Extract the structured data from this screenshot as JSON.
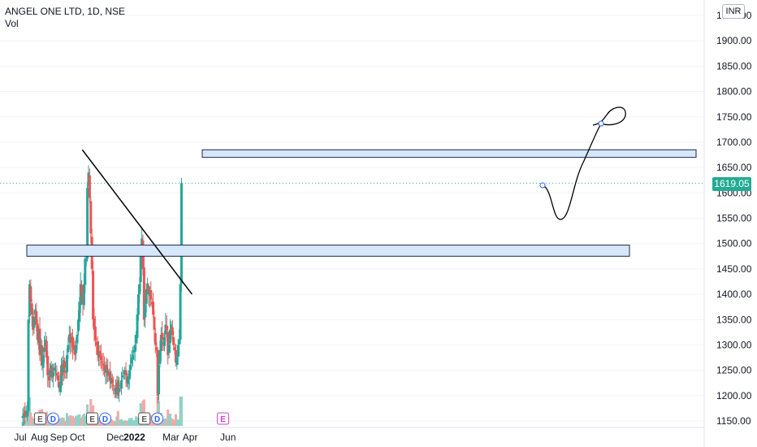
{
  "legend": {
    "symbol": "ANGEL ONE LTD, 1D, NSE",
    "indicator": "Vol"
  },
  "currency": "INR",
  "last_price_label": "1619.05",
  "colors": {
    "up": "#26a69a",
    "down": "#ef5350",
    "vol_up": "#8fd3c7",
    "vol_down": "#f5a8a6",
    "zone_fill": "#d6e6fb",
    "zone_stroke": "#1b2a4a",
    "last_price": "#22ab94",
    "e_badge": "#555555",
    "d_badge": "#2962ff",
    "future_e_badge": "#d142d4"
  },
  "chart_data": {
    "type": "candlestick",
    "title": "ANGEL ONE LTD, 1D, NSE",
    "y_axis": {
      "min": 1150,
      "max": 1950,
      "ticks": [
        1150,
        1200,
        1250,
        1300,
        1350,
        1400,
        1450,
        1500,
        1550,
        1600,
        1650,
        1700,
        1750,
        1800,
        1850,
        1900,
        1950
      ],
      "tick_labels": [
        "1150.00",
        "1200.00",
        "1250.00",
        "1300.00",
        "1350.00",
        "1400.00",
        "1450.00",
        "1500.00",
        "1550.00",
        "1600.00",
        "1650.00",
        "1700.00",
        "1750.00",
        "1800.00",
        "1850.00",
        "1900.00",
        "1950.00"
      ]
    },
    "x_axis": {
      "labels": [
        "Jul",
        "Aug",
        "Sep",
        "Oct",
        "Dec",
        "2022",
        "Mar",
        "Apr",
        "Jun"
      ],
      "bold": [
        "2022"
      ]
    },
    "last_price": 1619.05,
    "horizontal_zones": [
      {
        "low": 1670,
        "high": 1685
      },
      {
        "low": 1475,
        "high": 1497
      }
    ],
    "trendline": {
      "from": {
        "date": "2021-10-09",
        "price": 1685
      },
      "to": {
        "date": "2022-04-04",
        "price": 1400
      }
    },
    "projection_path": [
      [
        1619,
        1619
      ],
      [
        1610,
        1600
      ],
      [
        1570,
        1560
      ],
      [
        1555,
        1560
      ],
      [
        1600,
        1640
      ],
      [
        1700,
        1740
      ]
    ],
    "events": [
      {
        "date": "2021-08-02",
        "labels": [
          "E",
          "D"
        ]
      },
      {
        "date": "2021-10-25",
        "labels": [
          "E",
          "D"
        ]
      },
      {
        "date": "2022-01-17",
        "labels": [
          "E",
          "D"
        ]
      },
      {
        "date": "2022-05-24",
        "labels": [
          "E"
        ]
      }
    ],
    "series": [
      {
        "date_range": [
          "2021-07-05",
          "2022-03-18"
        ],
        "closes": [
          1160,
          1165,
          1158,
          1162,
          1170,
          1350,
          1420,
          1385,
          1360,
          1330,
          1355,
          1370,
          1340,
          1310,
          1330,
          1280,
          1300,
          1260,
          1280,
          1295,
          1310,
          1275,
          1240,
          1230,
          1250,
          1260,
          1235,
          1245,
          1255,
          1250,
          1240,
          1230,
          1215,
          1225,
          1260,
          1240,
          1270,
          1255,
          1245,
          1280,
          1300,
          1320,
          1305,
          1310,
          1295,
          1290,
          1280,
          1300,
          1320,
          1350,
          1385,
          1420,
          1400,
          1380,
          1420,
          1470,
          1470,
          1610,
          1640,
          1590,
          1520,
          1450,
          1350,
          1330,
          1310,
          1300,
          1280,
          1285,
          1275,
          1270,
          1265,
          1260,
          1250,
          1255,
          1245,
          1250,
          1240,
          1230,
          1235,
          1225,
          1220,
          1210,
          1215,
          1225,
          1200,
          1215,
          1220,
          1230,
          1240,
          1245,
          1250,
          1240,
          1225,
          1235,
          1250,
          1260,
          1275,
          1280,
          1290,
          1300,
          1320,
          1360,
          1400,
          1420,
          1480,
          1510,
          1450,
          1350,
          1380,
          1410,
          1420,
          1400,
          1405,
          1390,
          1380,
          1360,
          1330,
          1300,
          1290,
          1200,
          1260,
          1290,
          1320,
          1310,
          1300,
          1315,
          1340,
          1330,
          1280,
          1300,
          1330,
          1340,
          1320,
          1300,
          1290,
          1265,
          1275,
          1300,
          1310,
          1420,
          1619
        ]
      }
    ]
  }
}
